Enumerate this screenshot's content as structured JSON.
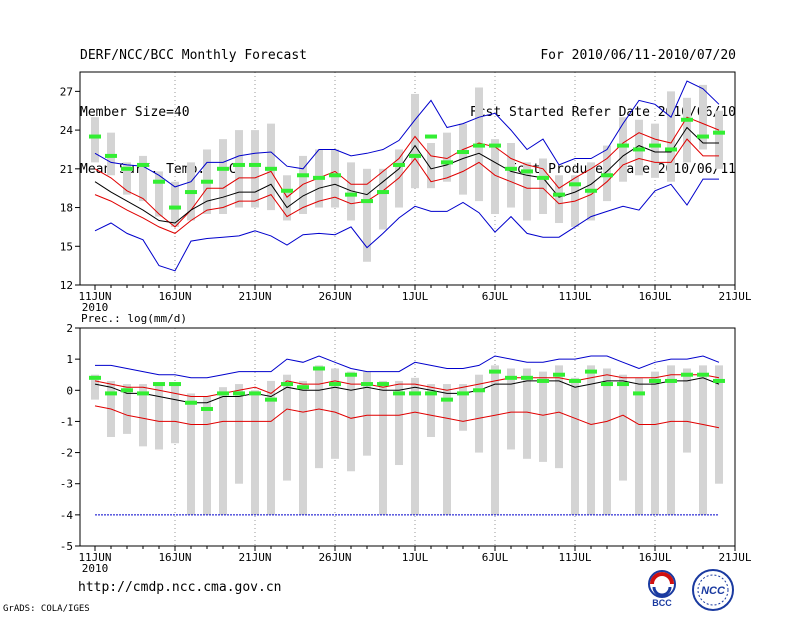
{
  "header": {
    "left_lines": [
      "DERF/NCC/BCC Monthly Forecast",
      "Member Size=40",
      "Mean Surf. Temp.: °C"
    ],
    "right_lines": [
      "For 2010/06/11-2010/07/20",
      "Fcst Started Refer Date 2010/06/10",
      "Fcst Produced Date 2010/06/11"
    ]
  },
  "footer": {
    "url": "http://cmdp.ncc.cma.gov.cn",
    "grads": "GrADS: COLA/IGES"
  },
  "logos": {
    "bcc_text": "BCC",
    "ncc_text": "NCC"
  },
  "colors": {
    "blue": "#0000cc",
    "red": "#e00000",
    "black": "#000000",
    "green": "#33ee33",
    "bar": "#d4d4d4",
    "grid": "#999999"
  },
  "chart_data": [
    {
      "type": "line",
      "title": "Mean Surf. Temp.: °C",
      "days": 40,
      "x_tick_labels": [
        "11JUN",
        "16JUN",
        "21JUN",
        "26JUN",
        "1JUL",
        "6JUL",
        "11JUL",
        "16JUL",
        "21JUL"
      ],
      "x_sub_label": "2010",
      "ylim": [
        12,
        28.5
      ],
      "y_ticks": [
        12,
        15,
        18,
        21,
        24,
        27
      ],
      "series": [
        {
          "name": "max",
          "color": "blue",
          "values": [
            22.2,
            21.5,
            21.3,
            21.2,
            20.5,
            19.6,
            20.0,
            21.5,
            21.5,
            22.0,
            22.2,
            22.3,
            21.2,
            21.0,
            22.5,
            22.5,
            22.0,
            22.2,
            22.5,
            23.2,
            24.8,
            26.3,
            24.2,
            24.5,
            25.0,
            25.3,
            24.0,
            22.5,
            23.3,
            21.3,
            21.8,
            21.8,
            22.5,
            24.5,
            26.3,
            26.0,
            25.0,
            27.8,
            27.2,
            26.0
          ]
        },
        {
          "name": "upper",
          "color": "red",
          "values": [
            21.0,
            20.3,
            19.3,
            18.7,
            17.5,
            16.5,
            17.8,
            19.5,
            19.5,
            20.3,
            20.3,
            20.8,
            18.8,
            19.8,
            20.3,
            20.8,
            19.8,
            19.8,
            20.8,
            21.8,
            23.5,
            22.0,
            21.8,
            22.5,
            23.0,
            22.7,
            21.8,
            21.3,
            21.0,
            19.5,
            20.3,
            21.0,
            21.8,
            23.0,
            23.8,
            23.3,
            23.0,
            25.0,
            24.5,
            24.0
          ]
        },
        {
          "name": "mean",
          "color": "black",
          "values": [
            20.0,
            19.2,
            18.5,
            17.8,
            17.0,
            16.8,
            17.8,
            18.5,
            18.8,
            19.2,
            19.2,
            19.8,
            18.0,
            18.9,
            19.5,
            19.8,
            19.3,
            19.0,
            20.0,
            21.0,
            22.8,
            21.0,
            21.3,
            21.8,
            22.2,
            21.5,
            20.8,
            20.5,
            20.3,
            18.8,
            19.2,
            19.8,
            20.8,
            22.0,
            22.8,
            22.3,
            22.3,
            24.2,
            23.0,
            23.0
          ]
        },
        {
          "name": "lower",
          "color": "red",
          "values": [
            19.0,
            18.5,
            17.8,
            17.2,
            16.5,
            16.0,
            17.0,
            17.8,
            18.0,
            18.5,
            18.5,
            19.0,
            17.3,
            18.0,
            18.5,
            18.8,
            18.3,
            18.5,
            19.3,
            20.3,
            21.8,
            20.0,
            20.3,
            20.8,
            21.5,
            20.5,
            20.0,
            19.5,
            19.5,
            18.3,
            18.5,
            19.0,
            20.0,
            21.3,
            21.8,
            21.5,
            21.5,
            23.3,
            22.0,
            22.0
          ]
        },
        {
          "name": "min",
          "color": "blue",
          "values": [
            16.2,
            16.8,
            16.0,
            15.5,
            13.5,
            13.1,
            15.4,
            15.6,
            15.7,
            15.8,
            16.2,
            15.8,
            15.1,
            15.9,
            16.0,
            15.9,
            16.5,
            14.9,
            16.0,
            17.2,
            18.1,
            17.7,
            17.7,
            18.4,
            17.6,
            16.1,
            17.3,
            16.0,
            15.7,
            15.7,
            16.5,
            17.3,
            17.7,
            18.1,
            17.8,
            19.3,
            19.8,
            18.2,
            20.2,
            20.2
          ]
        }
      ],
      "boxes": [
        {
          "lo": 21.5,
          "hi": 25.0
        },
        {
          "lo": 20.5,
          "hi": 23.8
        },
        {
          "lo": 19.0,
          "hi": 21.5
        },
        {
          "lo": 18.5,
          "hi": 22.0
        },
        {
          "lo": 17.3,
          "hi": 20.8
        },
        {
          "lo": 16.5,
          "hi": 20.0
        },
        {
          "lo": 17.0,
          "hi": 21.5
        },
        {
          "lo": 17.5,
          "hi": 22.5
        },
        {
          "lo": 17.5,
          "hi": 23.3
        },
        {
          "lo": 18.0,
          "hi": 24.0
        },
        {
          "lo": 18.0,
          "hi": 24.0
        },
        {
          "lo": 17.8,
          "hi": 24.5
        },
        {
          "lo": 17.0,
          "hi": 20.5
        },
        {
          "lo": 17.5,
          "hi": 22.0
        },
        {
          "lo": 18.0,
          "hi": 22.5
        },
        {
          "lo": 18.0,
          "hi": 22.5
        },
        {
          "lo": 17.0,
          "hi": 21.5
        },
        {
          "lo": 13.8,
          "hi": 21.0
        },
        {
          "lo": 16.3,
          "hi": 21.0
        },
        {
          "lo": 18.0,
          "hi": 22.5
        },
        {
          "lo": 19.5,
          "hi": 26.8
        },
        {
          "lo": 19.5,
          "hi": 23.0
        },
        {
          "lo": 20.0,
          "hi": 23.8
        },
        {
          "lo": 19.0,
          "hi": 24.5
        },
        {
          "lo": 18.5,
          "hi": 27.3
        },
        {
          "lo": 17.5,
          "hi": 23.3
        },
        {
          "lo": 18.0,
          "hi": 23.0
        },
        {
          "lo": 17.0,
          "hi": 21.5
        },
        {
          "lo": 17.5,
          "hi": 21.8
        },
        {
          "lo": 16.8,
          "hi": 20.5
        },
        {
          "lo": 16.5,
          "hi": 20.5
        },
        {
          "lo": 17.0,
          "hi": 21.5
        },
        {
          "lo": 18.5,
          "hi": 22.8
        },
        {
          "lo": 20.0,
          "hi": 25.0
        },
        {
          "lo": 20.5,
          "hi": 24.8
        },
        {
          "lo": 20.3,
          "hi": 24.5
        },
        {
          "lo": 20.0,
          "hi": 27.0
        },
        {
          "lo": 21.5,
          "hi": 26.5
        },
        {
          "lo": 22.5,
          "hi": 27.5
        },
        {
          "lo": 21.0,
          "hi": 25.5
        }
      ],
      "observed": [
        23.5,
        22.0,
        21.0,
        21.3,
        20.0,
        18.0,
        19.2,
        20.0,
        21.0,
        21.3,
        21.3,
        21.0,
        19.3,
        20.5,
        20.3,
        20.5,
        19.0,
        18.5,
        19.2,
        21.3,
        22.0,
        23.5,
        21.5,
        22.3,
        22.8,
        22.8,
        21.0,
        20.8,
        20.3,
        19.0,
        19.8,
        19.3,
        20.5,
        22.8,
        22.5,
        22.8,
        22.5,
        24.8,
        23.5,
        23.8
      ]
    },
    {
      "type": "line",
      "title": "Prec.: log(mm/d)",
      "days": 40,
      "x_tick_labels": [
        "11JUN",
        "16JUN",
        "21JUN",
        "26JUN",
        "1JUL",
        "6JUL",
        "11JUL",
        "16JUL",
        "21JUL"
      ],
      "x_sub_label": "2010",
      "ylim": [
        -5,
        2
      ],
      "y_ticks": [
        -5,
        -4,
        -3,
        -2,
        -1,
        0,
        1,
        2
      ],
      "series": [
        {
          "name": "max",
          "color": "blue",
          "values": [
            0.8,
            0.8,
            0.7,
            0.6,
            0.5,
            0.5,
            0.4,
            0.4,
            0.5,
            0.6,
            0.6,
            0.6,
            1.0,
            0.9,
            1.1,
            0.9,
            0.7,
            0.6,
            0.6,
            0.6,
            0.9,
            0.8,
            0.7,
            0.7,
            0.8,
            1.1,
            1.0,
            0.9,
            0.9,
            1.0,
            1.0,
            1.1,
            1.1,
            0.9,
            0.7,
            0.9,
            1.0,
            1.0,
            1.1,
            0.9
          ]
        },
        {
          "name": "upper",
          "color": "red",
          "values": [
            0.3,
            0.2,
            0.1,
            0.1,
            0.0,
            -0.1,
            -0.2,
            -0.2,
            -0.1,
            0.0,
            0.1,
            -0.1,
            0.3,
            0.2,
            0.2,
            0.3,
            0.2,
            0.2,
            0.1,
            0.2,
            0.2,
            0.1,
            0.0,
            0.1,
            0.2,
            0.3,
            0.4,
            0.4,
            0.4,
            0.4,
            0.3,
            0.4,
            0.5,
            0.4,
            0.4,
            0.4,
            0.5,
            0.5,
            0.5,
            0.4
          ]
        },
        {
          "name": "mean",
          "color": "black",
          "values": [
            0.2,
            0.1,
            -0.1,
            -0.1,
            -0.2,
            -0.3,
            -0.4,
            -0.4,
            -0.2,
            -0.2,
            -0.1,
            -0.2,
            0.1,
            0.0,
            0.0,
            0.1,
            0.0,
            0.1,
            0.0,
            0.0,
            0.1,
            0.0,
            -0.1,
            -0.1,
            0.0,
            0.2,
            0.2,
            0.3,
            0.3,
            0.3,
            0.1,
            0.2,
            0.3,
            0.3,
            0.2,
            0.2,
            0.3,
            0.3,
            0.4,
            0.2
          ]
        },
        {
          "name": "lower",
          "color": "red",
          "values": [
            -0.5,
            -0.6,
            -0.8,
            -0.9,
            -1.0,
            -1.0,
            -1.1,
            -1.1,
            -1.0,
            -1.0,
            -1.0,
            -1.0,
            -0.6,
            -0.7,
            -0.6,
            -0.7,
            -0.9,
            -0.8,
            -0.8,
            -0.8,
            -0.7,
            -0.8,
            -0.9,
            -1.0,
            -0.9,
            -0.8,
            -0.7,
            -0.7,
            -0.8,
            -0.7,
            -0.9,
            -1.1,
            -1.0,
            -0.8,
            -1.1,
            -1.1,
            -1.0,
            -1.0,
            -1.1,
            -1.2
          ]
        },
        {
          "name": "missing",
          "color": "blue",
          "values": [
            -4,
            -4,
            -4,
            -4,
            -4,
            -4,
            -4,
            -4,
            -4,
            -4,
            -4,
            -4,
            -4,
            -4,
            -4,
            -4,
            -4,
            -4,
            -4,
            -4,
            -4,
            -4,
            -4,
            -4,
            -4,
            -4,
            -4,
            -4,
            -4,
            -4,
            -4,
            -4,
            -4,
            -4,
            -4,
            -4,
            -4,
            -4,
            -4,
            -4
          ]
        }
      ],
      "boxes": [
        {
          "lo": -0.3,
          "hi": 0.5
        },
        {
          "lo": -1.5,
          "hi": 0.3
        },
        {
          "lo": -1.4,
          "hi": 0.2
        },
        {
          "lo": -1.8,
          "hi": 0.2
        },
        {
          "lo": -1.9,
          "hi": 0.2
        },
        {
          "lo": -1.7,
          "hi": 0.2
        },
        {
          "lo": -4.0,
          "hi": -0.1
        },
        {
          "lo": -4.0,
          "hi": -0.2
        },
        {
          "lo": -4.0,
          "hi": 0.1
        },
        {
          "lo": -3.0,
          "hi": 0.2
        },
        {
          "lo": -4.0,
          "hi": 0.0
        },
        {
          "lo": -4.0,
          "hi": 0.3
        },
        {
          "lo": -2.9,
          "hi": 0.5
        },
        {
          "lo": -4.0,
          "hi": 0.3
        },
        {
          "lo": -2.5,
          "hi": 0.8
        },
        {
          "lo": -2.2,
          "hi": 0.7
        },
        {
          "lo": -2.6,
          "hi": 0.6
        },
        {
          "lo": -2.1,
          "hi": 0.6
        },
        {
          "lo": -4.0,
          "hi": 0.3
        },
        {
          "lo": -2.4,
          "hi": 0.3
        },
        {
          "lo": -4.0,
          "hi": 0.4
        },
        {
          "lo": -1.5,
          "hi": 0.2
        },
        {
          "lo": -4.0,
          "hi": 0.2
        },
        {
          "lo": -1.3,
          "hi": 0.2
        },
        {
          "lo": -2.0,
          "hi": 0.5
        },
        {
          "lo": -4.0,
          "hi": 0.8
        },
        {
          "lo": -1.9,
          "hi": 0.7
        },
        {
          "lo": -2.2,
          "hi": 0.7
        },
        {
          "lo": -2.3,
          "hi": 0.6
        },
        {
          "lo": -2.5,
          "hi": 0.8
        },
        {
          "lo": -4.0,
          "hi": 0.4
        },
        {
          "lo": -4.0,
          "hi": 0.8
        },
        {
          "lo": -4.0,
          "hi": 0.7
        },
        {
          "lo": -2.9,
          "hi": 0.5
        },
        {
          "lo": -4.0,
          "hi": 0.4
        },
        {
          "lo": -4.0,
          "hi": 0.6
        },
        {
          "lo": -4.0,
          "hi": 0.8
        },
        {
          "lo": -2.0,
          "hi": 0.7
        },
        {
          "lo": -4.0,
          "hi": 0.8
        },
        {
          "lo": -3.0,
          "hi": 0.8
        }
      ],
      "observed": [
        0.4,
        -0.1,
        0.0,
        -0.1,
        0.2,
        0.2,
        -0.4,
        -0.6,
        -0.1,
        -0.1,
        -0.1,
        -0.3,
        0.2,
        0.1,
        0.7,
        0.2,
        0.5,
        0.2,
        0.2,
        -0.1,
        -0.1,
        -0.1,
        -0.3,
        -0.1,
        0.0,
        0.6,
        0.4,
        0.4,
        0.3,
        0.5,
        0.3,
        0.6,
        0.2,
        0.2,
        -0.1,
        0.3,
        0.3,
        0.5,
        0.5,
        0.3
      ]
    }
  ]
}
